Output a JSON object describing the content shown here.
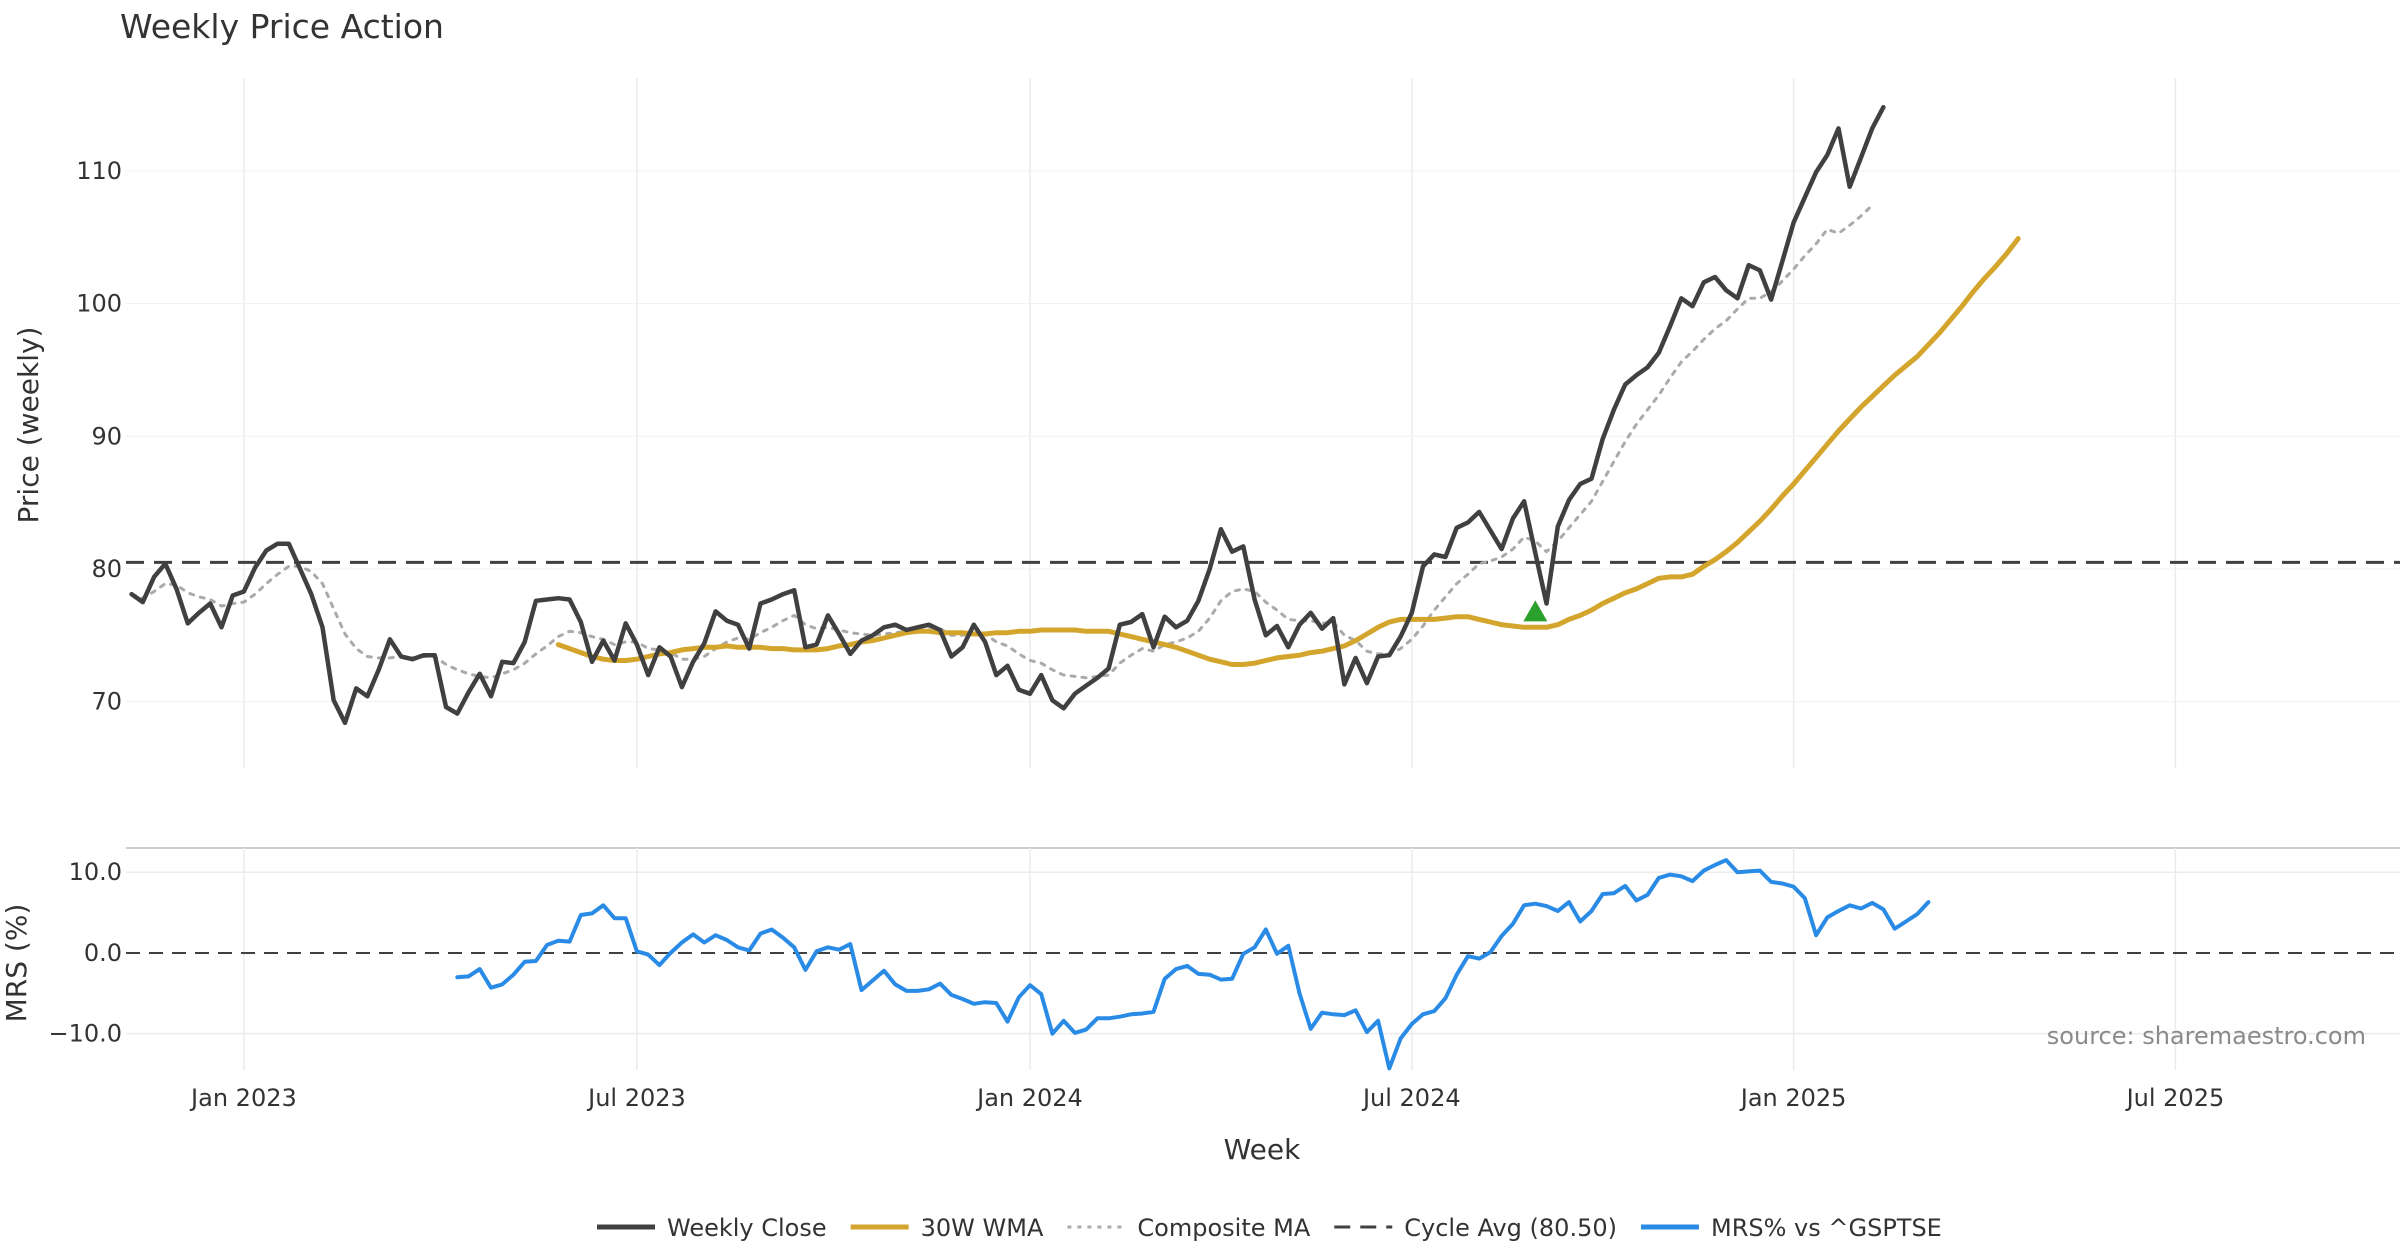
{
  "chart_data": {
    "type": "line",
    "title": "Weekly Price Action",
    "xlabel": "Week",
    "source": "source: sharemaestro.com",
    "x_ticks": [
      "Jan 2023",
      "Jul 2023",
      "Jan 2024",
      "Jul 2024",
      "Jan 2025",
      "Jul 2025"
    ],
    "x_tick_weeks": [
      10,
      45,
      80,
      114,
      148,
      182
    ],
    "x_range_weeks": [
      -0.5,
      202
    ],
    "price_panel": {
      "ylabel": "Price (weekly)",
      "ylim": [
        65,
        117
      ],
      "yticks": [
        70,
        80,
        90,
        100,
        110
      ],
      "cycle_avg": 80.5,
      "signal": {
        "week": 125,
        "price": 76.8,
        "marker": "triangle-up",
        "color": "#2ca02c"
      },
      "series": [
        {
          "name": "Weekly Close",
          "color": "#404040",
          "start_week": 0,
          "values": [
            78.1,
            77.5,
            79.4,
            80.4,
            78.5,
            75.9,
            76.7,
            77.4,
            75.6,
            78,
            78.3,
            80.1,
            81.4,
            81.9,
            81.9,
            80,
            78.1,
            75.6,
            70.1,
            68.4,
            71,
            70.4,
            72.4,
            74.7,
            73.4,
            73.2,
            73.5,
            73.5,
            69.6,
            69.1,
            70.7,
            72.1,
            70.4,
            73,
            72.9,
            74.5,
            77.6,
            77.7,
            77.8,
            77.7,
            76,
            73,
            74.6,
            73.1,
            75.9,
            74.3,
            72,
            74.1,
            73.4,
            71.1,
            73,
            74.4,
            76.8,
            76.1,
            75.8,
            74,
            77.4,
            77.7,
            78.1,
            78.4,
            74.1,
            74.3,
            76.5,
            75.1,
            73.6,
            74.6,
            75,
            75.6,
            75.8,
            75.4,
            75.6,
            75.8,
            75.4,
            73.4,
            74.1,
            75.8,
            74.5,
            72,
            72.7,
            70.9,
            70.6,
            72,
            70.1,
            69.5,
            70.6,
            71.2,
            71.8,
            72.5,
            75.8,
            76,
            76.6,
            74.1,
            76.4,
            75.6,
            76.1,
            77.6,
            80,
            83,
            81.3,
            81.7,
            77.7,
            75,
            75.7,
            74.1,
            75.8,
            76.7,
            75.5,
            76.3,
            71.3,
            73.3,
            71.4,
            73.4,
            73.5,
            74.9,
            76.7,
            80.2,
            81.1,
            80.9,
            83.1,
            83.5,
            84.3,
            82.9,
            81.5,
            83.8,
            85.1,
            81.2,
            77.4,
            83.2,
            85.2,
            86.4,
            86.8,
            89.8,
            92,
            93.9,
            94.6,
            95.2,
            96.3,
            98.3,
            100.4,
            99.8,
            101.6,
            102,
            101,
            100.4,
            102.9,
            102.5,
            100.3,
            103.2,
            106.1,
            108,
            109.9,
            111.2,
            113.2,
            108.8,
            111,
            113.2,
            114.8
          ]
        },
        {
          "name": "30W WMA",
          "color": "#d4a52c",
          "start_week": 38,
          "values": [
            74.3,
            74,
            73.7,
            73.4,
            73.2,
            73.1,
            73.1,
            73.2,
            73.4,
            73.6,
            73.7,
            73.9,
            74,
            74.1,
            74.1,
            74.2,
            74.1,
            74.1,
            74.1,
            74,
            74,
            73.9,
            73.9,
            73.9,
            74,
            74.2,
            74.3,
            74.5,
            74.6,
            74.8,
            75,
            75.2,
            75.3,
            75.3,
            75.2,
            75.2,
            75.2,
            75.1,
            75.1,
            75.2,
            75.2,
            75.3,
            75.3,
            75.4,
            75.4,
            75.4,
            75.4,
            75.3,
            75.3,
            75.3,
            75.1,
            74.9,
            74.7,
            74.5,
            74.3,
            74.1,
            73.8,
            73.5,
            73.2,
            73,
            72.8,
            72.8,
            72.9,
            73.1,
            73.3,
            73.4,
            73.5,
            73.7,
            73.8,
            74,
            74.2,
            74.6,
            75.1,
            75.6,
            76,
            76.2,
            76.2,
            76.2,
            76.2,
            76.3,
            76.4,
            76.4,
            76.2,
            76,
            75.8,
            75.7,
            75.6,
            75.6,
            75.6,
            75.8,
            76.2,
            76.5,
            76.9,
            77.4,
            77.8,
            78.2,
            78.5,
            78.9,
            79.3,
            79.4,
            79.4,
            79.6,
            80.2,
            80.7,
            81.3,
            82,
            82.8,
            83.6,
            84.5,
            85.5,
            86.4,
            87.4,
            88.4,
            89.4,
            90.4,
            91.3,
            92.2,
            93,
            93.8,
            94.6,
            95.3,
            96,
            96.9,
            97.8,
            98.8,
            99.8,
            100.9,
            101.9,
            102.8,
            103.8,
            104.9
          ]
        },
        {
          "name": "Composite MA",
          "color": "#aaaaaa",
          "start_week": 0,
          "values": [
            78.1,
            77.8,
            78.3,
            78.9,
            78.8,
            78.2,
            77.9,
            77.7,
            77.2,
            77.4,
            77.5,
            78.1,
            78.9,
            79.6,
            80.2,
            80.2,
            79.8,
            78.9,
            77,
            75.1,
            74,
            73.4,
            73.3,
            73.3,
            73.4,
            73.3,
            73.4,
            73.4,
            72.8,
            72.4,
            72.1,
            71.9,
            71.8,
            72.1,
            72.4,
            72.9,
            73.6,
            74.2,
            74.9,
            75.3,
            75.2,
            74.9,
            74.7,
            74.3,
            74.5,
            74.5,
            74,
            73.9,
            73.7,
            73.2,
            73.2,
            73.4,
            74,
            74.5,
            74.8,
            74.7,
            75.2,
            75.6,
            76.1,
            76.5,
            75.8,
            75.5,
            75.6,
            75.4,
            75.2,
            75.1,
            75,
            75.1,
            75.2,
            75.3,
            75.3,
            75.5,
            75.5,
            75,
            75,
            75.2,
            75.1,
            74.5,
            74.2,
            73.6,
            73.1,
            72.9,
            72.4,
            72,
            71.9,
            71.8,
            71.9,
            72,
            72.9,
            73.5,
            74,
            73.8,
            74.3,
            74.5,
            74.8,
            75.3,
            76.3,
            77.6,
            78.3,
            78.5,
            78.3,
            77.5,
            76.9,
            76.2,
            76.1,
            76.1,
            75.9,
            76,
            75,
            74.6,
            73.8,
            73.6,
            73.6,
            74,
            74.7,
            75.7,
            76.9,
            77.9,
            78.9,
            79.6,
            80.4,
            80.6,
            80.9,
            81.5,
            82.4,
            82.1,
            81.3,
            82.1,
            83.1,
            84.1,
            85.1,
            86.6,
            88.1,
            89.6,
            90.9,
            92,
            93.1,
            94.4,
            95.6,
            96.4,
            97.3,
            98.1,
            98.7,
            99.6,
            100.4,
            100.4,
            100.9,
            101.7,
            102.6,
            103.6,
            104.5,
            105.6,
            105.3,
            105.9,
            106.6,
            107.4
          ]
        }
      ]
    },
    "mrs_panel": {
      "ylabel": "MRS (%)",
      "ylim": [
        -14.5,
        13
      ],
      "yticks": [
        10,
        0,
        -10
      ],
      "ytick_labels": [
        "10.0",
        "0.0",
        "−10.0"
      ],
      "zero_line": 0,
      "series": [
        {
          "name": "MRS% vs ^GSPTSE",
          "color": "#2a8be6",
          "start_week": 29,
          "values": [
            -3,
            -2.9,
            -2,
            -4.3,
            -3.9,
            -2.7,
            -1.1,
            -1,
            1,
            1.5,
            1.4,
            4.7,
            4.9,
            5.9,
            4.3,
            4.3,
            0.2,
            -0.2,
            -1.5,
            0,
            1.3,
            2.3,
            1.3,
            2.2,
            1.6,
            0.7,
            0.3,
            2.4,
            2.9,
            1.9,
            0.7,
            -2.1,
            0.2,
            0.7,
            0.4,
            1.1,
            -4.6,
            -3.4,
            -2.2,
            -3.9,
            -4.7,
            -4.7,
            -4.5,
            -3.8,
            -5.2,
            -5.7,
            -6.3,
            -6.1,
            -6.2,
            -8.5,
            -5.5,
            -4,
            -5.1,
            -10,
            -8.4,
            -9.9,
            -9.5,
            -8.1,
            -8.1,
            -7.9,
            -7.6,
            -7.5,
            -7.3,
            -3.2,
            -2,
            -1.6,
            -2.6,
            -2.7,
            -3.3,
            -3.2,
            -0.1,
            0.7,
            2.9,
            -0.1,
            0.9,
            -5,
            -9.4,
            -7.4,
            -7.6,
            -7.7,
            -7.1,
            -9.8,
            -8.4,
            -14.3,
            -10.6,
            -8.8,
            -7.6,
            -7.2,
            -5.6,
            -2.7,
            -0.4,
            -0.7,
            0.1,
            2.1,
            3.6,
            5.9,
            6.1,
            5.8,
            5.2,
            6.3,
            3.9,
            5.2,
            7.3,
            7.4,
            8.3,
            6.5,
            7.2,
            9.3,
            9.7,
            9.5,
            8.9,
            10.2,
            10.9,
            11.5,
            10,
            10.1,
            10.2,
            8.8,
            8.6,
            8.2,
            6.8,
            2.2,
            4.4,
            5.2,
            5.9,
            5.5,
            6.2,
            5.4,
            3,
            3.9,
            4.8,
            6.3
          ]
        }
      ]
    },
    "legend": [
      {
        "label": "Weekly Close",
        "color": "#404040",
        "style": "solid"
      },
      {
        "label": "30W WMA",
        "color": "#d4a52c",
        "style": "solid"
      },
      {
        "label": "Composite MA",
        "color": "#aaaaaa",
        "style": "dotted"
      },
      {
        "label": "Cycle Avg (80.50)",
        "color": "#404040",
        "style": "dashed"
      },
      {
        "label": "MRS% vs ^GSPTSE",
        "color": "#2a8be6",
        "style": "solid"
      }
    ]
  }
}
